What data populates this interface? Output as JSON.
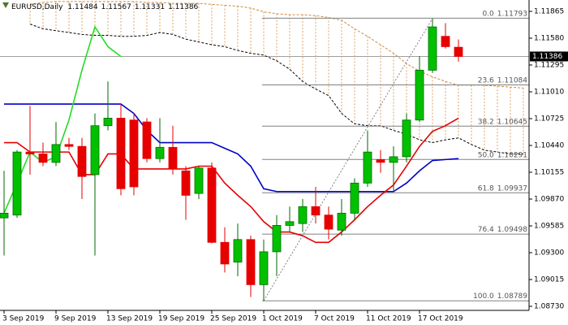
{
  "chart_data": {
    "type": "candlestick",
    "symbol": "EURUSD,Daily",
    "header_ohlc": [
      1.11484,
      1.11567,
      1.11331,
      1.11386
    ],
    "categories": [
      "3 Sep 2019",
      null,
      null,
      null,
      "9 Sep 2019",
      null,
      null,
      null,
      "13 Sep 2019",
      null,
      null,
      null,
      "19 Sep 2019",
      null,
      null,
      null,
      "25 Sep 2019",
      null,
      null,
      null,
      "1 Oct 2019",
      null,
      null,
      null,
      "7 Oct 2019",
      null,
      null,
      null,
      "11 Oct 2019",
      null,
      null,
      null,
      "17 Oct 2019",
      null,
      null,
      null,
      null,
      null,
      null,
      null,
      null
    ],
    "open": [
      1.0967,
      1.097,
      1.1037,
      1.1035,
      1.1026,
      1.1045,
      1.1043,
      1.1013,
      1.1065,
      1.1073,
      1.1071,
      1.1069,
      1.103,
      1.1042,
      1.1017,
      1.0993,
      1.102,
      1.0941,
      1.092,
      1.0944,
      1.0896,
      1.0931,
      1.0959,
      1.0961,
      1.0979,
      1.097,
      1.0954,
      1.0972,
      1.1004,
      1.1029,
      1.1026,
      1.1032,
      1.1071,
      1.1124,
      1.116,
      1.11484,
      null,
      null,
      null,
      null,
      null
    ],
    "high": [
      1.1017,
      1.1039,
      1.1086,
      1.1047,
      1.1069,
      1.1052,
      1.1052,
      1.1078,
      1.1112,
      1.1088,
      1.1078,
      1.1073,
      1.1073,
      1.1065,
      1.1022,
      1.1022,
      1.1026,
      1.0957,
      1.0961,
      1.0948,
      1.0944,
      1.097,
      1.0979,
      1.0987,
      1.1,
      1.0979,
      1.0987,
      1.1009,
      1.106,
      1.1039,
      1.1043,
      1.1078,
      1.1139,
      1.1179,
      1.1174,
      1.11567,
      null,
      null,
      null,
      null,
      null
    ],
    "low": [
      1.0927,
      1.0967,
      1.1013,
      1.1022,
      1.1022,
      1.1039,
      1.0987,
      1.0927,
      1.106,
      1.0991,
      1.0991,
      1.1026,
      1.1026,
      1.1013,
      1.0965,
      1.0987,
      1.094,
      1.0909,
      1.0905,
      1.0883,
      1.0879,
      1.0905,
      1.0952,
      1.0952,
      1.0961,
      1.0944,
      1.0948,
      1.0965,
      1.1,
      1.1015,
      1.0996,
      1.1026,
      1.1069,
      1.1121,
      1.1147,
      1.11331,
      null,
      null,
      null,
      null,
      null
    ],
    "close": [
      1.0972,
      1.1037,
      1.1035,
      1.1026,
      1.1045,
      1.1043,
      1.1011,
      1.1065,
      1.1073,
      1.0998,
      1.1,
      1.103,
      1.1042,
      1.1019,
      1.0991,
      1.102,
      1.0941,
      1.0918,
      1.0944,
      1.0896,
      1.0931,
      1.0959,
      1.0963,
      1.0979,
      1.097,
      1.0955,
      1.0972,
      1.1004,
      1.1037,
      1.1026,
      1.1032,
      1.1071,
      1.1124,
      1.117,
      1.1149,
      1.11386,
      null,
      null,
      null,
      null,
      null
    ],
    "up_color": "#00c000",
    "down_color": "#e60000",
    "lines": [
      {
        "color": "#0000c8",
        "values": [
          1.1088,
          1.1088,
          1.1088,
          1.1088,
          1.1088,
          1.1088,
          1.1088,
          1.1088,
          1.1088,
          1.1088,
          1.1078,
          1.106,
          1.1047,
          1.1047,
          1.1047,
          1.1047,
          1.1047,
          1.1041,
          1.1035,
          1.1022,
          1.0998,
          1.0995,
          1.0995,
          1.0995,
          1.0995,
          1.0995,
          1.0995,
          1.0995,
          1.0995,
          1.0995,
          1.0995,
          1.1004,
          1.1017,
          1.1028,
          1.1029,
          1.103,
          null,
          null,
          null,
          null,
          null
        ]
      },
      {
        "color": "#e60000",
        "values": [
          1.1047,
          1.1047,
          1.1037,
          1.1037,
          1.1037,
          1.1037,
          1.1013,
          1.1013,
          1.1035,
          1.1035,
          1.1019,
          1.1019,
          1.1019,
          1.1019,
          1.1019,
          1.1022,
          1.1022,
          1.1004,
          1.0991,
          1.0979,
          1.0963,
          1.0952,
          1.0952,
          1.0948,
          1.0941,
          1.0941,
          1.0952,
          1.0965,
          1.0979,
          1.0991,
          1.1002,
          1.1022,
          1.1043,
          1.1059,
          1.1065,
          1.1073,
          null,
          null,
          null,
          null,
          null
        ]
      },
      {
        "color": "#22dd22",
        "values": [
          1.0972,
          1.1004,
          1.1037,
          1.1026,
          1.1032,
          1.1071,
          1.1124,
          1.117,
          1.1149,
          1.11386,
          null,
          null,
          null,
          null,
          null,
          null,
          null,
          null,
          null,
          null,
          null,
          null,
          null,
          null,
          null,
          null,
          null,
          null,
          null,
          null,
          null,
          null,
          null,
          null,
          null,
          null,
          null,
          null,
          null,
          null,
          null
        ]
      }
    ],
    "cloud": {
      "color": "#e0a060",
      "a": {
        "color": "#d08a3a",
        "values": [
          null,
          null,
          1.1194,
          1.1196,
          1.1197,
          1.1197,
          1.1197,
          1.1197,
          1.1197,
          1.1197,
          1.1197,
          1.1196,
          1.1196,
          1.1195,
          1.1195,
          1.1195,
          1.1194,
          1.1193,
          1.1192,
          1.119,
          1.1186,
          1.1184,
          1.1183,
          1.1183,
          1.1182,
          1.118,
          1.1177,
          1.1168,
          1.116,
          1.1151,
          1.1142,
          1.1131,
          1.1123,
          1.1117,
          1.1112,
          1.1108,
          1.1108,
          1.1108,
          1.1107,
          1.1106,
          1.1105
        ]
      },
      "b": {
        "color": "#000000",
        "values": [
          null,
          null,
          1.1173,
          1.1168,
          1.1166,
          1.1164,
          1.1162,
          1.1161,
          1.1161,
          1.116,
          1.116,
          1.1161,
          1.1164,
          1.1162,
          1.1157,
          1.1154,
          1.1151,
          1.1149,
          1.1145,
          1.1142,
          1.114,
          1.1134,
          1.1125,
          1.1112,
          1.1104,
          1.1097,
          1.1078,
          1.1067,
          1.1065,
          1.1065,
          1.106,
          1.1056,
          1.105,
          1.1047,
          1.105,
          1.1052,
          1.1045,
          1.1039,
          1.1037,
          1.1035,
          1.1035
        ]
      }
    },
    "current_price": 1.11386,
    "fibonacci": {
      "color": "#808080",
      "levels": [
        {
          "ratio": "0.0",
          "price": 1.11793
        },
        {
          "ratio": "23.6",
          "price": 1.11084
        },
        {
          "ratio": "38.2",
          "price": 1.10645
        },
        {
          "ratio": "50.0",
          "price": 1.10291
        },
        {
          "ratio": "61.8",
          "price": 1.09937
        },
        {
          "ratio": "76.4",
          "price": 1.09498
        },
        {
          "ratio": "100.0",
          "price": 1.08789
        }
      ]
    },
    "ylim": [
      1.08687,
      1.11986
    ],
    "yticks": [
      1.11865,
      {
        "value": 1.1158,
        "label": "1.11580"
      },
      1.11295,
      {
        "value": 1.1101,
        "label": "1.11010"
      },
      1.10725,
      {
        "value": 1.1044,
        "label": "1.10440"
      },
      1.10155,
      {
        "value": 1.0987,
        "label": "1.09870"
      },
      1.09585,
      {
        "value": 1.093,
        "label": "1.09300"
      },
      1.09015,
      {
        "value": 1.0873,
        "label": "1.08730"
      }
    ]
  }
}
